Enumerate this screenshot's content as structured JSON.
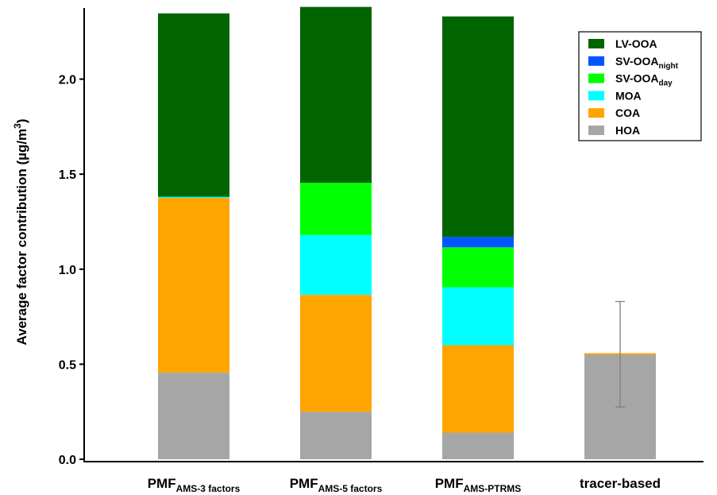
{
  "chart_data": {
    "type": "bar",
    "stacked": true,
    "categories": [
      {
        "main": "PMF",
        "sub": "AMS-3 factors"
      },
      {
        "main": "PMF",
        "sub": "AMS-5 factors"
      },
      {
        "main": "PMF",
        "sub": "AMS-PTRMS"
      },
      {
        "main": "tracer-based",
        "sub": ""
      }
    ],
    "series": [
      {
        "name": "HOA",
        "name_main": "HOA",
        "name_sub": "",
        "color": "#a6a6a6",
        "values": [
          0.455,
          0.25,
          0.14,
          0.55
        ]
      },
      {
        "name": "COA",
        "name_main": "COA",
        "name_sub": "",
        "color": "#ffa500",
        "values": [
          0.92,
          0.615,
          0.46,
          0.008
        ]
      },
      {
        "name": "MOA",
        "name_main": "MOA",
        "name_sub": "",
        "color": "#00ffff",
        "values": [
          0.006,
          0.315,
          0.305,
          0
        ]
      },
      {
        "name": "SV-OOAday",
        "name_main": "SV-OOA",
        "name_sub": "day",
        "color": "#00ff00",
        "values": [
          0,
          0.275,
          0.21,
          0
        ]
      },
      {
        "name": "SV-OOAnight",
        "name_main": "SV-OOA",
        "name_sub": "night",
        "color": "#0055ff",
        "values": [
          0,
          0,
          0.055,
          0
        ]
      },
      {
        "name": "LV-OOA",
        "name_main": "LV-OOA",
        "name_sub": "",
        "color": "#006400",
        "values": [
          0.965,
          0.925,
          1.16,
          0
        ]
      }
    ],
    "legend_order": [
      "LV-OOA",
      "SV-OOAnight",
      "SV-OOAday",
      "MOA",
      "COA",
      "HOA"
    ],
    "error_bar": {
      "category_index": 3,
      "center": 0.55,
      "low": 0.275,
      "high": 0.83,
      "color": "#808080"
    },
    "ylabel_main": "Average factor contribution (µg/m",
    "ylabel_sup": "3",
    "ylabel_end": ")",
    "ylim": [
      0,
      2.38
    ],
    "yticks": [
      0.0,
      0.5,
      1.0,
      1.5,
      2.0
    ],
    "ytick_labels": [
      "0.0",
      "0.5",
      "1.0",
      "1.5",
      "2.0"
    ],
    "legend_position": "top-right",
    "grid": false
  }
}
